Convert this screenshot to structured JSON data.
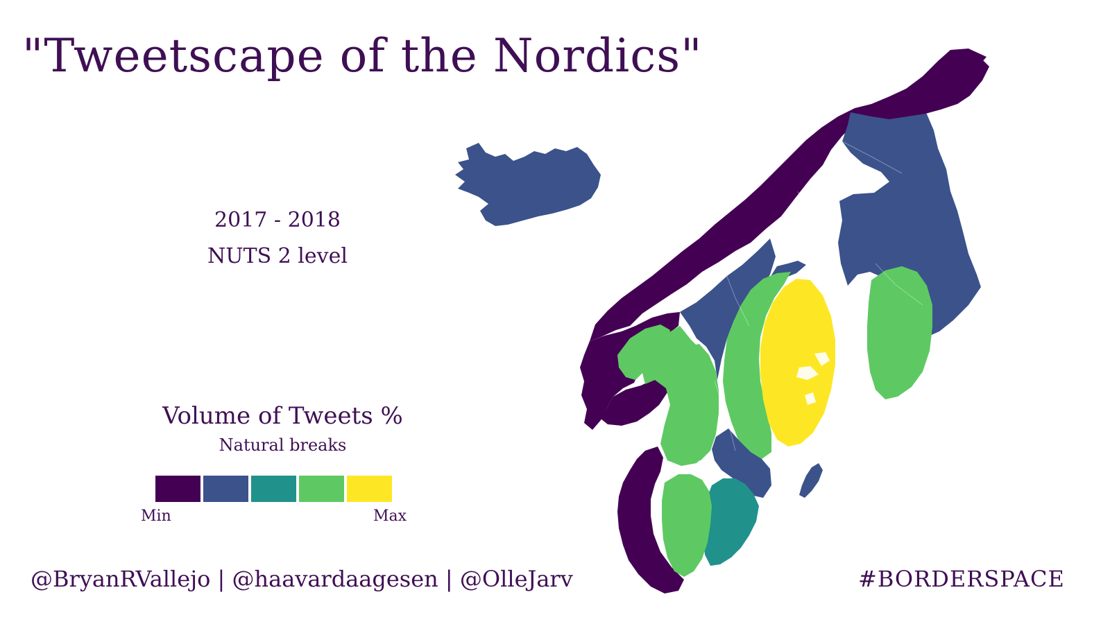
{
  "title": "\"Tweetscape of the Nordics\"",
  "period": "2017 - 2018",
  "level": "NUTS 2 level",
  "legend": {
    "title": "Volume of Tweets %",
    "subtitle": "Natural breaks",
    "min_label": "Min",
    "max_label": "Max",
    "classes": [
      "#440154",
      "#3b528b",
      "#21918c",
      "#5ec962",
      "#fde725"
    ]
  },
  "credits": "@BryanRVallejo | @haavardaagesen | @OlleJarv",
  "hashtag": "#BORDERSPACE",
  "map": {
    "regions": [
      {
        "name": "iceland",
        "class": 2
      },
      {
        "name": "norway-north",
        "class": 1
      },
      {
        "name": "norway-west",
        "class": 1
      },
      {
        "name": "norway-south",
        "class": 1
      },
      {
        "name": "norway-east",
        "class": 4
      },
      {
        "name": "oslo",
        "class": 4
      },
      {
        "name": "norway-mid",
        "class": 2
      },
      {
        "name": "norway-coast",
        "class": 2
      },
      {
        "name": "sweden-north",
        "class": 2
      },
      {
        "name": "sweden-middle-north",
        "class": 4
      },
      {
        "name": "stockholm",
        "class": 5
      },
      {
        "name": "sweden-west",
        "class": 4
      },
      {
        "name": "sweden-east",
        "class": 2
      },
      {
        "name": "sweden-south",
        "class": 3
      },
      {
        "name": "denmark",
        "class": 1
      },
      {
        "name": "denmark-capital",
        "class": 4
      },
      {
        "name": "finland-north",
        "class": 1
      },
      {
        "name": "finland-east",
        "class": 2
      },
      {
        "name": "helsinki",
        "class": 4
      },
      {
        "name": "gotland",
        "class": 2
      }
    ]
  }
}
